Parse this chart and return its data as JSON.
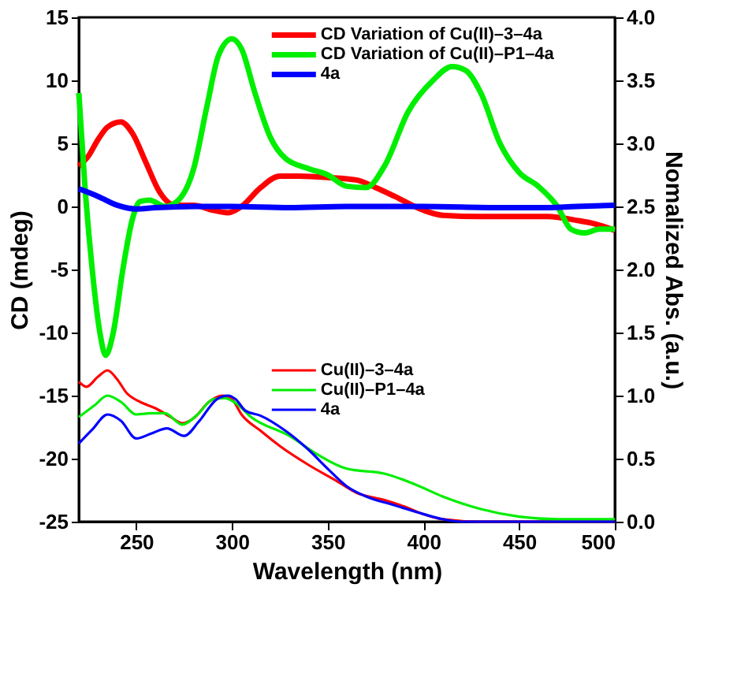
{
  "chart_data": {
    "type": "line",
    "xlabel": "Wavelength (nm)",
    "ylabel": "CD (mdeg)",
    "y2label": "Nomalized Abs. (a.u.)",
    "xlim": [
      220,
      500
    ],
    "xticks": [
      250,
      300,
      350,
      400,
      450,
      500
    ],
    "ylim": [
      -25,
      15
    ],
    "yticks": [
      -25,
      -20,
      -15,
      -10,
      -5,
      0,
      5,
      10,
      15
    ],
    "y2lim": [
      0,
      4.0
    ],
    "y2ticks": [
      {
        "value": 0,
        "label": "0.0"
      },
      {
        "value": 0.5,
        "label": "0.5"
      },
      {
        "value": 1,
        "label": "1.0"
      },
      {
        "value": 1.5,
        "label": "1.5"
      },
      {
        "value": 2,
        "label": "2.0"
      },
      {
        "value": 2.5,
        "label": "2.5"
      },
      {
        "value": 3,
        "label": "3.0"
      },
      {
        "value": 3.5,
        "label": "3.5"
      },
      {
        "value": 4,
        "label": "4.0"
      }
    ],
    "grid": false,
    "legend": "top",
    "line_style": "solid",
    "marker": "none",
    "series": [
      {
        "name": "CD Variation of Cu(II)–3–4a",
        "color": "#ff0000",
        "x": [
          220,
          225,
          230,
          235,
          242,
          248,
          255,
          262,
          270,
          280,
          290,
          298,
          305,
          315,
          325,
          335,
          350,
          365,
          375,
          385,
          400,
          410,
          430,
          450,
          465,
          480,
          490,
          500
        ],
        "values": [
          3.2,
          4,
          5.3,
          6.3,
          6.7,
          5.8,
          3.5,
          1.2,
          0.1,
          0.1,
          -0.3,
          -0.5,
          0,
          1.5,
          2.4,
          2.4,
          2.3,
          2.1,
          1.5,
          0.8,
          -0.3,
          -0.7,
          -0.8,
          -0.8,
          -0.8,
          -1.1,
          -1.4,
          -1.9
        ]
      },
      {
        "name": "CD Variation of Cu(II)–P1–4a",
        "color": "#00ee00",
        "x": [
          220,
          223,
          227,
          231,
          234,
          238,
          243,
          248,
          252,
          257,
          265,
          272,
          280,
          287,
          293,
          300,
          305,
          312,
          320,
          328,
          340,
          350,
          360,
          370,
          380,
          392,
          405,
          415,
          422,
          430,
          440,
          450,
          460,
          470,
          477,
          484,
          492,
          500
        ],
        "values": [
          9,
          2,
          -5,
          -10,
          -11.8,
          -10,
          -5,
          -1,
          0.4,
          0.5,
          0,
          0.5,
          3,
          8,
          12,
          13.3,
          12.5,
          9,
          5.5,
          3.8,
          3,
          2.5,
          1.6,
          1.5,
          3.3,
          7.5,
          10,
          11.1,
          10.8,
          9,
          5,
          2.7,
          1.6,
          0,
          -1.8,
          -2.1,
          -1.8,
          -1.8
        ]
      },
      {
        "name": "4a",
        "color": "#0000ff",
        "x": [
          220,
          230,
          240,
          250,
          260,
          280,
          300,
          330,
          360,
          400,
          440,
          460,
          480,
          500
        ],
        "values": [
          1.4,
          0.8,
          0.1,
          -0.2,
          -0.1,
          0,
          0,
          -0.1,
          0,
          0,
          -0.1,
          -0.1,
          0,
          0.1
        ]
      },
      {
        "name": "Cu(II)–3–4a",
        "color": "#ff0000",
        "axis": "y2",
        "x": [
          220,
          224,
          230,
          235,
          240,
          245,
          252,
          260,
          268,
          274,
          280,
          288,
          295,
          300,
          305,
          315,
          325,
          340,
          355,
          365,
          380,
          390,
          400,
          410,
          430,
          500
        ],
        "values": [
          1.11,
          1.07,
          1.15,
          1.2,
          1.13,
          1.02,
          0.95,
          0.9,
          0.83,
          0.78,
          0.82,
          0.95,
          1.0,
          0.97,
          0.85,
          0.72,
          0.6,
          0.45,
          0.32,
          0.23,
          0.17,
          0.12,
          0.06,
          0.02,
          0.0,
          0.0
        ]
      },
      {
        "name": "Cu(II)–P1–4a",
        "color": "#00ee00",
        "axis": "y2",
        "x": [
          220,
          228,
          235,
          242,
          250,
          258,
          265,
          274,
          282,
          290,
          296,
          302,
          310,
          330,
          345,
          360,
          380,
          395,
          410,
          430,
          450,
          470,
          500
        ],
        "values": [
          0.83,
          0.92,
          1.0,
          0.95,
          0.85,
          0.86,
          0.86,
          0.77,
          0.85,
          0.97,
          0.98,
          0.94,
          0.83,
          0.68,
          0.53,
          0.42,
          0.38,
          0.3,
          0.2,
          0.1,
          0.04,
          0.02,
          0.02
        ]
      },
      {
        "name": "4a",
        "color": "#0000ff",
        "axis": "y2",
        "x": [
          220,
          227,
          235,
          242,
          250,
          258,
          266,
          275,
          283,
          292,
          298,
          302,
          307,
          315,
          328,
          340,
          350,
          360,
          370,
          385,
          400,
          410,
          420,
          500
        ],
        "values": [
          0.62,
          0.73,
          0.85,
          0.8,
          0.66,
          0.7,
          0.74,
          0.68,
          0.8,
          0.97,
          1.0,
          0.97,
          0.88,
          0.84,
          0.72,
          0.57,
          0.42,
          0.28,
          0.2,
          0.13,
          0.06,
          0.02,
          0,
          0
        ]
      }
    ]
  }
}
